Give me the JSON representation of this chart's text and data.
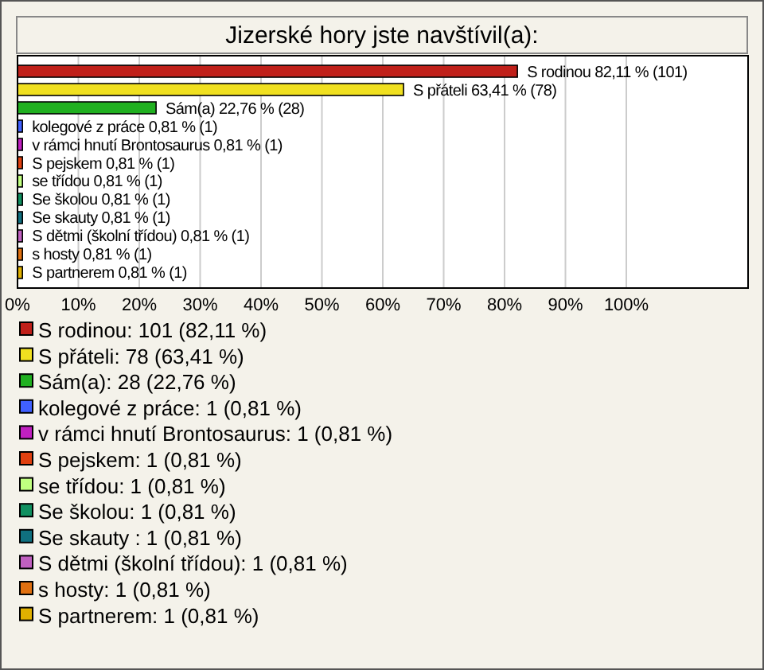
{
  "chart_data": {
    "type": "bar",
    "orientation": "horizontal",
    "title": "Jizerské hory jste navštívil(a):",
    "categories": [
      null,
      null,
      null,
      null,
      null,
      null,
      null,
      null,
      null,
      null,
      null,
      null
    ],
    "xlim": [
      0,
      120
    ],
    "xticks": [
      {
        "value": 0,
        "label": "0%"
      },
      {
        "value": 10,
        "label": "10%"
      },
      {
        "value": 20,
        "label": "20%"
      },
      {
        "value": 30,
        "label": "30%"
      },
      {
        "value": 40,
        "label": "40%"
      },
      {
        "value": 50,
        "label": "50%"
      },
      {
        "value": 60,
        "label": "60%"
      },
      {
        "value": 70,
        "label": "70%"
      },
      {
        "value": 80,
        "label": "80%"
      },
      {
        "value": 90,
        "label": "90%"
      },
      {
        "value": 100,
        "label": "100%"
      }
    ],
    "grid": "x",
    "legend": "bottom",
    "series": [
      {
        "name": "S rodinou: 101 (82,11 %)",
        "color": "#c0201a",
        "values": [
          82.11,
          null,
          null,
          null,
          null,
          null,
          null,
          null,
          null,
          null,
          null,
          null
        ],
        "value_labels": [
          "S rodinou 82,11 % (101)",
          null,
          null,
          null,
          null,
          null,
          null,
          null,
          null,
          null,
          null,
          null
        ]
      },
      {
        "name": "S přáteli: 78 (63,41 %)",
        "color": "#f0e020",
        "values": [
          null,
          63.41,
          null,
          null,
          null,
          null,
          null,
          null,
          null,
          null,
          null,
          null
        ],
        "value_labels": [
          null,
          "S přáteli 63,41 % (78)",
          null,
          null,
          null,
          null,
          null,
          null,
          null,
          null,
          null,
          null
        ]
      },
      {
        "name": "Sám(a): 28 (22,76 %)",
        "color": "#20b020",
        "values": [
          null,
          null,
          22.76,
          null,
          null,
          null,
          null,
          null,
          null,
          null,
          null,
          null
        ],
        "value_labels": [
          null,
          null,
          "Sám(a) 22,76 % (28)",
          null,
          null,
          null,
          null,
          null,
          null,
          null,
          null,
          null
        ]
      },
      {
        "name": "kolegové z práce: 1 (0,81 %)",
        "color": "#4060ff",
        "values": [
          null,
          null,
          null,
          0.81,
          null,
          null,
          null,
          null,
          null,
          null,
          null,
          null
        ],
        "value_labels": [
          null,
          null,
          null,
          "kolegové z práce 0,81 % (1)",
          null,
          null,
          null,
          null,
          null,
          null,
          null,
          null
        ]
      },
      {
        "name": "v rámci hnutí Brontosaurus: 1 (0,81 %)",
        "color": "#c020c0",
        "values": [
          null,
          null,
          null,
          null,
          0.81,
          null,
          null,
          null,
          null,
          null,
          null,
          null
        ],
        "value_labels": [
          null,
          null,
          null,
          null,
          "v rámci hnutí Brontosaurus 0,81 % (1)",
          null,
          null,
          null,
          null,
          null,
          null,
          null
        ]
      },
      {
        "name": "S pejskem: 1 (0,81 %)",
        "color": "#e04010",
        "values": [
          null,
          null,
          null,
          null,
          null,
          0.81,
          null,
          null,
          null,
          null,
          null,
          null
        ],
        "value_labels": [
          null,
          null,
          null,
          null,
          null,
          "S pejskem 0,81 % (1)",
          null,
          null,
          null,
          null,
          null,
          null
        ]
      },
      {
        "name": "se třídou: 1 (0,81 %)",
        "color": "#c0ff80",
        "values": [
          null,
          null,
          null,
          null,
          null,
          null,
          0.81,
          null,
          null,
          null,
          null,
          null
        ],
        "value_labels": [
          null,
          null,
          null,
          null,
          null,
          null,
          "se třídou 0,81 % (1)",
          null,
          null,
          null,
          null,
          null
        ]
      },
      {
        "name": "Se školou: 1 (0,81 %)",
        "color": "#109060",
        "values": [
          null,
          null,
          null,
          null,
          null,
          null,
          null,
          0.81,
          null,
          null,
          null,
          null
        ],
        "value_labels": [
          null,
          null,
          null,
          null,
          null,
          null,
          null,
          "Se školou 0,81 % (1)",
          null,
          null,
          null,
          null
        ]
      },
      {
        "name": "Se skauty : 1 (0,81 %)",
        "color": "#107080",
        "values": [
          null,
          null,
          null,
          null,
          null,
          null,
          null,
          null,
          0.81,
          null,
          null,
          null
        ],
        "value_labels": [
          null,
          null,
          null,
          null,
          null,
          null,
          null,
          null,
          "Se skauty  0,81 % (1)",
          null,
          null,
          null
        ]
      },
      {
        "name": "S dětmi (školní třídou): 1 (0,81 %)",
        "color": "#c060c0",
        "values": [
          null,
          null,
          null,
          null,
          null,
          null,
          null,
          null,
          null,
          0.81,
          null,
          null
        ],
        "value_labels": [
          null,
          null,
          null,
          null,
          null,
          null,
          null,
          null,
          null,
          "S dětmi (školní třídou) 0,81 % (1)",
          null,
          null
        ]
      },
      {
        "name": "s hosty: 1 (0,81 %)",
        "color": "#e07010",
        "values": [
          null,
          null,
          null,
          null,
          null,
          null,
          null,
          null,
          null,
          null,
          0.81,
          null
        ],
        "value_labels": [
          null,
          null,
          null,
          null,
          null,
          null,
          null,
          null,
          null,
          null,
          "s hosty 0,81 % (1)",
          null
        ]
      },
      {
        "name": "S partnerem: 1 (0,81 %)",
        "color": "#e0b000",
        "values": [
          null,
          null,
          null,
          null,
          null,
          null,
          null,
          null,
          null,
          null,
          null,
          0.81
        ],
        "value_labels": [
          null,
          null,
          null,
          null,
          null,
          null,
          null,
          null,
          null,
          null,
          null,
          "S partnerem 0,81 % (1)"
        ]
      }
    ]
  }
}
